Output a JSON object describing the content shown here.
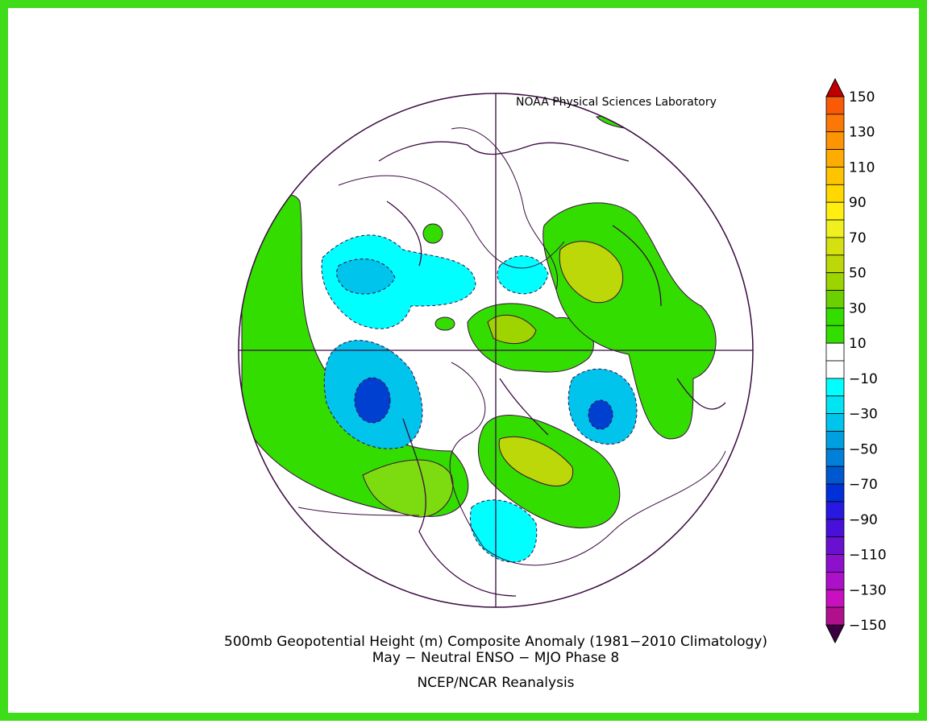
{
  "credit": "NOAA Physical Sciences Laboratory",
  "title": "500mb Geopotential Height (m) Composite Anomaly (1981−2010 Climatology)",
  "subtitle": "May − Neutral ENSO − MJO Phase 8",
  "source": "NCEP/NCAR Reanalysis",
  "colorbar": {
    "labels": [
      "150",
      "130",
      "110",
      "90",
      "70",
      "50",
      "30",
      "10",
      "−10",
      "−30",
      "−50",
      "−70",
      "−90",
      "−110",
      "−130",
      "−150"
    ],
    "top_color": "#c00000",
    "bottom_color": "#3c0040",
    "colors": [
      "#e81010",
      "#f23a0c",
      "#f85a08",
      "#fb7806",
      "#fd9404",
      "#feac02",
      "#ffc400",
      "#ffd800",
      "#ffee10",
      "#f0f020",
      "#d4e010",
      "#bcd808",
      "#9cd400",
      "#6cd000",
      "#33dd00",
      "#33dd00",
      "#ffffff",
      "#ffffff",
      "#00ffff",
      "#00e4f4",
      "#00c4ec",
      "#00a0e0",
      "#0080d8",
      "#0058d0",
      "#0030d8",
      "#2818e0",
      "#4810d8",
      "#6a10d0",
      "#8c10cc",
      "#ac10c8",
      "#c810c0",
      "#b0108c",
      "#901070",
      "#6c0860"
    ]
  }
}
